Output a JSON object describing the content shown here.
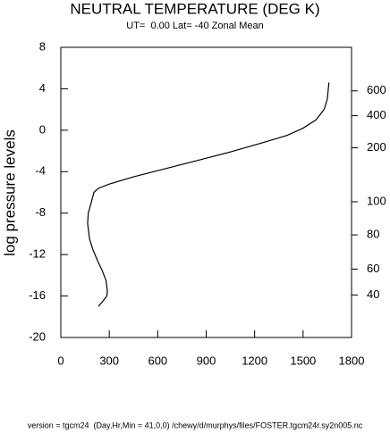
{
  "chart_data": {
    "type": "line",
    "title": "NEUTRAL TEMPERATURE (DEG K)",
    "subtitle": "UT=  0.00 Lat= -40 Zonal Mean",
    "y_label": "log pressure levels",
    "footer": "version = tgcm24  (Day,Hr,Min = 41,0,0) /chewy/d/murphys/files/FOSTER.tgcm24r.sy2n005.nc",
    "xlim": [
      0,
      1800
    ],
    "xticks": [
      0,
      300,
      600,
      900,
      1200,
      1500,
      1800
    ],
    "ylim": [
      -20,
      8
    ],
    "yticks": [
      -20,
      -16,
      -12,
      -8,
      -4,
      0,
      4,
      8
    ],
    "y2ticks": [
      600,
      400,
      200,
      100,
      80,
      60,
      40
    ],
    "y2ticks_at": [
      3.8,
      1.4,
      -1.7,
      -6.9,
      -10.1,
      -13.4,
      -15.9
    ],
    "color": "#000000",
    "x": [
      233,
      260,
      285,
      288,
      280,
      255,
      225,
      198,
      178,
      166,
      170,
      188,
      205,
      233,
      300,
      450,
      650,
      850,
      1050,
      1250,
      1400,
      1500,
      1580,
      1630,
      1650,
      1660
    ],
    "values": [
      -17.0,
      -16.5,
      -16.0,
      -15.5,
      -14.5,
      -13.5,
      -12.5,
      -11.5,
      -10.5,
      -9.0,
      -8.0,
      -7.0,
      -6.0,
      -5.6,
      -5.2,
      -4.5,
      -3.7,
      -2.9,
      -2.1,
      -1.2,
      -0.5,
      0.2,
      1.0,
      2.0,
      3.0,
      4.6
    ]
  }
}
